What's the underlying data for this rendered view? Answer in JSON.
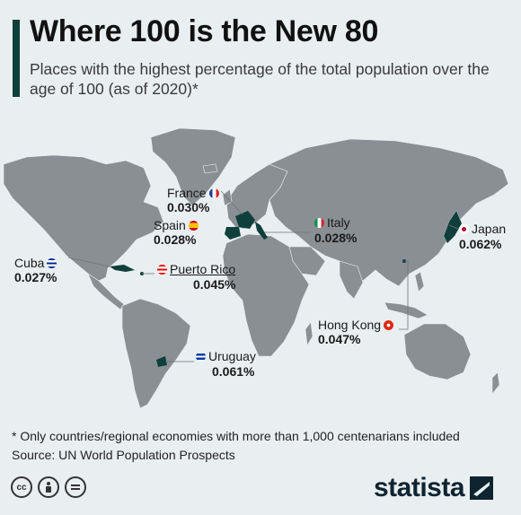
{
  "header": {
    "title": "Where 100 is the New 80",
    "subtitle": "Places with the highest percentage of the total population over the age of 100 (as of 2020)*"
  },
  "map": {
    "land_color": "#8a8f93",
    "highlight_color": "#0e3f3b",
    "leader_color": "#6f7478",
    "labels": [
      {
        "id": "france",
        "name": "France",
        "value": "0.030%",
        "flag": "france-flag-icon"
      },
      {
        "id": "spain",
        "name": "Spain",
        "value": "0.028%",
        "flag": "spain-flag-icon"
      },
      {
        "id": "italy",
        "name": "Italy",
        "value": "0.028%",
        "flag": "italy-flag-icon"
      },
      {
        "id": "japan",
        "name": "Japan",
        "value": "0.062%",
        "flag": "japan-flag-icon"
      },
      {
        "id": "cuba",
        "name": "Cuba",
        "value": "0.027%",
        "flag": "cuba-flag-icon"
      },
      {
        "id": "puerto-rico",
        "name": "Puerto Rico",
        "value": "0.045%",
        "flag": "puerto-rico-flag-icon"
      },
      {
        "id": "hong-kong",
        "name": "Hong Kong",
        "value": "0.047%",
        "flag": "hong-kong-flag-icon"
      },
      {
        "id": "uruguay",
        "name": "Uruguay",
        "value": "0.061%",
        "flag": "uruguay-flag-icon"
      }
    ]
  },
  "footer": {
    "note": "* Only countries/regional economies with more than 1,000 centenarians included",
    "source": "Source: UN World Population Prospects",
    "brand": "statista",
    "license_icons": [
      "creative-commons-icon",
      "attribution-icon",
      "no-derivatives-icon"
    ]
  }
}
